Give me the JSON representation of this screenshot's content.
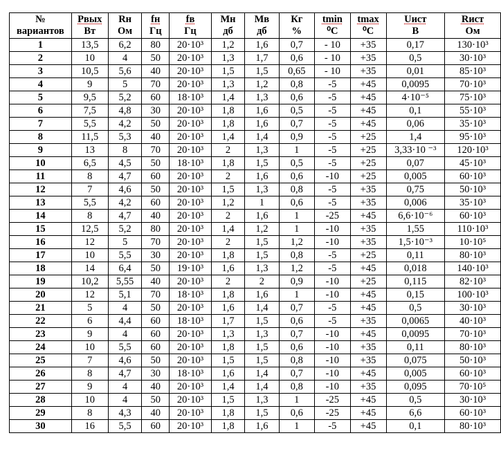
{
  "headers": [
    {
      "top": "№",
      "bottom": "вариантов"
    },
    {
      "top": "Pвых",
      "bottom": "Вт"
    },
    {
      "top": "Rн",
      "bottom": "Ом"
    },
    {
      "top": "fн",
      "bottom": "Гц"
    },
    {
      "top": "fв",
      "bottom": "Гц"
    },
    {
      "top": "Мн",
      "bottom": "дб"
    },
    {
      "top": "Мв",
      "bottom": "дб"
    },
    {
      "top": "Кг",
      "bottom": "%"
    },
    {
      "top": "tmin",
      "bottom": "⁰C"
    },
    {
      "top": "tmax",
      "bottom": "⁰C"
    },
    {
      "top": "Uист",
      "bottom": "В"
    },
    {
      "top": "Rист",
      "bottom": "Ом"
    }
  ],
  "rows": [
    [
      "1",
      "13,5",
      "6,2",
      "80",
      "20·10³",
      "1,2",
      "1,6",
      "0,7",
      "- 10",
      "+35",
      "0,17",
      "130·10³"
    ],
    [
      "2",
      "10",
      "4",
      "50",
      "20·10³",
      "1,3",
      "1,7",
      "0,6",
      "- 10",
      "+35",
      "0,5",
      "30·10³"
    ],
    [
      "3",
      "10,5",
      "5,6",
      "40",
      "20·10³",
      "1,5",
      "1,5",
      "0,65",
      "- 10",
      "+35",
      "0,01",
      "85·10³"
    ],
    [
      "4",
      "9",
      "5",
      "70",
      "20·10³",
      "1,3",
      "1,2",
      "0,8",
      "-5",
      "+45",
      "0,0095",
      "70·10³"
    ],
    [
      "5",
      "9,5",
      "5,2",
      "60",
      "18·10³",
      "1,4",
      "1,3",
      "0,6",
      "-5",
      "+45",
      "4·10⁻⁵",
      "75·10³"
    ],
    [
      "6",
      "7,5",
      "4,8",
      "30",
      "20·10³",
      "1,8",
      "1,6",
      "0,5",
      "-5",
      "+45",
      "0,1",
      "55·10³"
    ],
    [
      "7",
      "5,5",
      "4,2",
      "50",
      "20·10³",
      "1,8",
      "1,6",
      "0,7",
      "-5",
      "+45",
      "0,06",
      "35·10³"
    ],
    [
      "8",
      "11,5",
      "5,3",
      "40",
      "20·10³",
      "1,4",
      "1,4",
      "0,9",
      "-5",
      "+25",
      "1,4",
      "95·10³"
    ],
    [
      "9",
      "13",
      "8",
      "70",
      "20·10³",
      "2",
      "1,3",
      "1",
      "-5",
      "+25",
      "3,33·10 ⁻³",
      "120·10³"
    ],
    [
      "10",
      "6,5",
      "4,5",
      "50",
      "18·10³",
      "1,8",
      "1,5",
      "0,5",
      "-5",
      "+25",
      "0,07",
      "45·10³"
    ],
    [
      "11",
      "8",
      "4,7",
      "60",
      "20·10³",
      "2",
      "1,6",
      "0,6",
      "-10",
      "+25",
      "0,005",
      "60·10³"
    ],
    [
      "12",
      "7",
      "4,6",
      "50",
      "20·10³",
      "1,5",
      "1,3",
      "0,8",
      "-5",
      "+35",
      "0,75",
      "50·10³"
    ],
    [
      "13",
      "5,5",
      "4,2",
      "60",
      "20·10³",
      "1,2",
      "1",
      "0,6",
      "-5",
      "+35",
      "0,006",
      "35·10³"
    ],
    [
      "14",
      "8",
      "4,7",
      "40",
      "20·10³",
      "2",
      "1,6",
      "1",
      "-25",
      "+45",
      "6,6·10⁻⁶",
      "60·10³"
    ],
    [
      "15",
      "12,5",
      "5,2",
      "80",
      "20·10³",
      "1,4",
      "1,2",
      "1",
      "-10",
      "+35",
      "1,55",
      "110·10³"
    ],
    [
      "16",
      "12",
      "5",
      "70",
      "20·10³",
      "2",
      "1,5",
      "1,2",
      "-10",
      "+35",
      "1,5·10⁻³",
      "10·10⁵"
    ],
    [
      "17",
      "10",
      "5,5",
      "30",
      "20·10³",
      "1,8",
      "1,5",
      "0,8",
      "-5",
      "+25",
      "0,11",
      "80·10³"
    ],
    [
      "18",
      "14",
      "6,4",
      "50",
      "19·10³",
      "1,6",
      "1,3",
      "1,2",
      "-5",
      "+45",
      "0,018",
      "140·10³"
    ],
    [
      "19",
      "10,2",
      "5,55",
      "40",
      "20·10³",
      "2",
      "2",
      "0,9",
      "-10",
      "+25",
      "0,115",
      "82·10³"
    ],
    [
      "20",
      "12",
      "5,1",
      "70",
      "18·10³",
      "1,8",
      "1,6",
      "1",
      "-10",
      "+45",
      "0,15",
      "100·10³"
    ],
    [
      "21",
      "5",
      "4",
      "50",
      "20·10³",
      "1,6",
      "1,4",
      "0,7",
      "-5",
      "+45",
      "0,5",
      "30·10³"
    ],
    [
      "22",
      "6",
      "4,4",
      "60",
      "18·10³",
      "1,7",
      "1,5",
      "0,6",
      "-5",
      "+35",
      "0,0065",
      "40·10³"
    ],
    [
      "23",
      "9",
      "4",
      "60",
      "20·10³",
      "1,3",
      "1,3",
      "0,7",
      "-10",
      "+45",
      "0,0095",
      "70·10³"
    ],
    [
      "24",
      "10",
      "5,5",
      "60",
      "20·10³",
      "1,8",
      "1,5",
      "0,6",
      "-10",
      "+35",
      "0,11",
      "80·10³"
    ],
    [
      "25",
      "7",
      "4,6",
      "50",
      "20·10³",
      "1,5",
      "1,5",
      "0,8",
      "-10",
      "+35",
      "0,075",
      "50·10³"
    ],
    [
      "26",
      "8",
      "4,7",
      "30",
      "18·10³",
      "1,6",
      "1,4",
      "0,7",
      "-10",
      "+45",
      "0,005",
      "60·10³"
    ],
    [
      "27",
      "9",
      "4",
      "40",
      "20·10³",
      "1,4",
      "1,4",
      "0,8",
      "-10",
      "+35",
      "0,095",
      "70·10⁵"
    ],
    [
      "28",
      "10",
      "4",
      "50",
      "20·10³",
      "1,5",
      "1,3",
      "1",
      "-25",
      "+45",
      "0,5",
      "30·10³"
    ],
    [
      "29",
      "8",
      "4,3",
      "40",
      "20·10³",
      "1,8",
      "1,5",
      "0,6",
      "-25",
      "+45",
      "6,6",
      "60·10³"
    ],
    [
      "30",
      "16",
      "5,5",
      "60",
      "20·10³",
      "1,8",
      "1,6",
      "1",
      "-5",
      "+45",
      "0,1",
      "80·10³"
    ]
  ]
}
